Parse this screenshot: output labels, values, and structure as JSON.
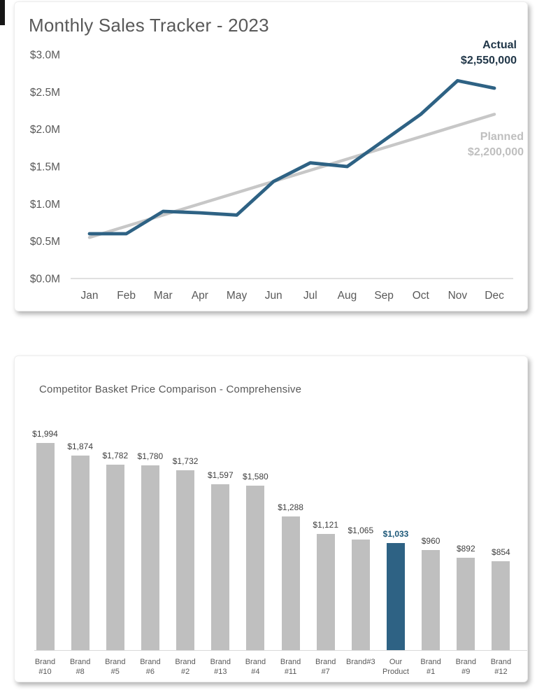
{
  "page": {
    "background": "#ffffff",
    "card_background": "#ffffff"
  },
  "chart_data": [
    {
      "type": "line",
      "title": "Monthly Sales Tracker - 2023",
      "categories": [
        "Jan",
        "Feb",
        "Mar",
        "Apr",
        "May",
        "Jun",
        "Jul",
        "Aug",
        "Sep",
        "Oct",
        "Nov",
        "Dec"
      ],
      "y_ticks": [
        "$3.0M",
        "$2.5M",
        "$2.0M",
        "$1.5M",
        "$1.0M",
        "$0.5M",
        "$0.0M"
      ],
      "ylim": [
        0,
        3000000
      ],
      "grid": "off",
      "legend_position": "end-of-line-annotations",
      "series": [
        {
          "name": "Actual",
          "color": "#2e6284",
          "label_color": "#1f3547",
          "end_label": "$2,550,000",
          "values": [
            600000,
            600000,
            900000,
            880000,
            850000,
            1300000,
            1550000,
            1500000,
            1850000,
            2200000,
            2650000,
            2550000
          ]
        },
        {
          "name": "Planned",
          "color": "#c7c7c7",
          "label_color": "#bfbfbf",
          "end_label": "$2,200,000",
          "values": [
            550000,
            700000,
            850000,
            1000000,
            1150000,
            1300000,
            1450000,
            1600000,
            1750000,
            1900000,
            2050000,
            2200000
          ]
        }
      ]
    },
    {
      "type": "bar",
      "title": "Competitor Basket Price Comparison - Comprehensive",
      "bar_color": "#bfbfbf",
      "highlight_color": "#2e6284",
      "highlight_value_color": "#1d5878",
      "max_value": 1994,
      "grid": "off",
      "bars": [
        {
          "label_lines": [
            "Brand",
            "#10"
          ],
          "value": 1994,
          "value_label": "$1,994",
          "highlight": false
        },
        {
          "label_lines": [
            "Brand",
            "#8"
          ],
          "value": 1874,
          "value_label": "$1,874",
          "highlight": false
        },
        {
          "label_lines": [
            "Brand",
            "#5"
          ],
          "value": 1782,
          "value_label": "$1,782",
          "highlight": false
        },
        {
          "label_lines": [
            "Brand",
            "#6"
          ],
          "value": 1780,
          "value_label": "$1,780",
          "highlight": false
        },
        {
          "label_lines": [
            "Brand",
            "#2"
          ],
          "value": 1732,
          "value_label": "$1,732",
          "highlight": false
        },
        {
          "label_lines": [
            "Brand",
            "#13"
          ],
          "value": 1597,
          "value_label": "$1,597",
          "highlight": false
        },
        {
          "label_lines": [
            "Brand",
            "#4"
          ],
          "value": 1580,
          "value_label": "$1,580",
          "highlight": false
        },
        {
          "label_lines": [
            "Brand",
            "#11"
          ],
          "value": 1288,
          "value_label": "$1,288",
          "highlight": false
        },
        {
          "label_lines": [
            "Brand",
            "#7"
          ],
          "value": 1121,
          "value_label": "$1,121",
          "highlight": false
        },
        {
          "label_lines": [
            "Brand#3"
          ],
          "value": 1065,
          "value_label": "$1,065",
          "highlight": false
        },
        {
          "label_lines": [
            "Our",
            "Product"
          ],
          "value": 1033,
          "value_label": "$1,033",
          "highlight": true
        },
        {
          "label_lines": [
            "Brand",
            "#1"
          ],
          "value": 960,
          "value_label": "$960",
          "highlight": false
        },
        {
          "label_lines": [
            "Brand",
            "#9"
          ],
          "value": 892,
          "value_label": "$892",
          "highlight": false
        },
        {
          "label_lines": [
            "Brand",
            "#12"
          ],
          "value": 854,
          "value_label": "$854",
          "highlight": false
        }
      ]
    }
  ]
}
